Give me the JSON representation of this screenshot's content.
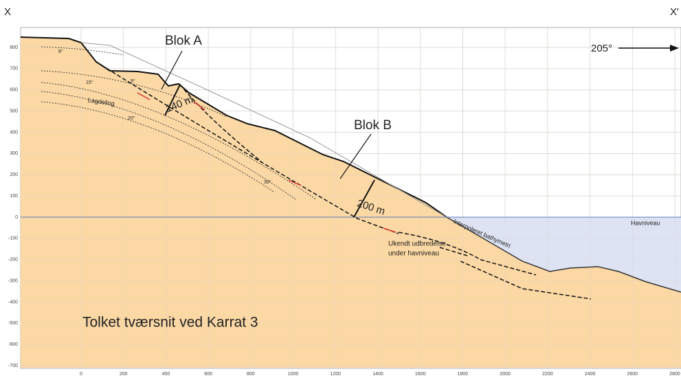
{
  "corner_left": "X",
  "corner_right": "X'",
  "direction": "205°",
  "block_a": "Blok A",
  "block_b": "Blok B",
  "thickness_a": "140 m",
  "thickness_b": "200 m",
  "bedding": "Lagdeling",
  "angles": [
    "8°",
    "15°",
    "9°",
    "20°",
    "30°"
  ],
  "sea_level": "Havniveau",
  "bathymetry": "Interpoleret bathymetri",
  "unknown_extent": [
    "Ukendt udbredelse",
    "under havniveau"
  ],
  "title": "Tolket tværsnit ved Karrat 3",
  "y_ticks": [
    800,
    700,
    600,
    500,
    400,
    300,
    200,
    100,
    0,
    -100,
    -200,
    -300,
    -400,
    -500,
    -600,
    -700
  ],
  "x_ticks": [
    0,
    200,
    400,
    600,
    800,
    1000,
    1200,
    1400,
    1600,
    1800,
    2000,
    2200,
    2400,
    2600,
    2800
  ]
}
